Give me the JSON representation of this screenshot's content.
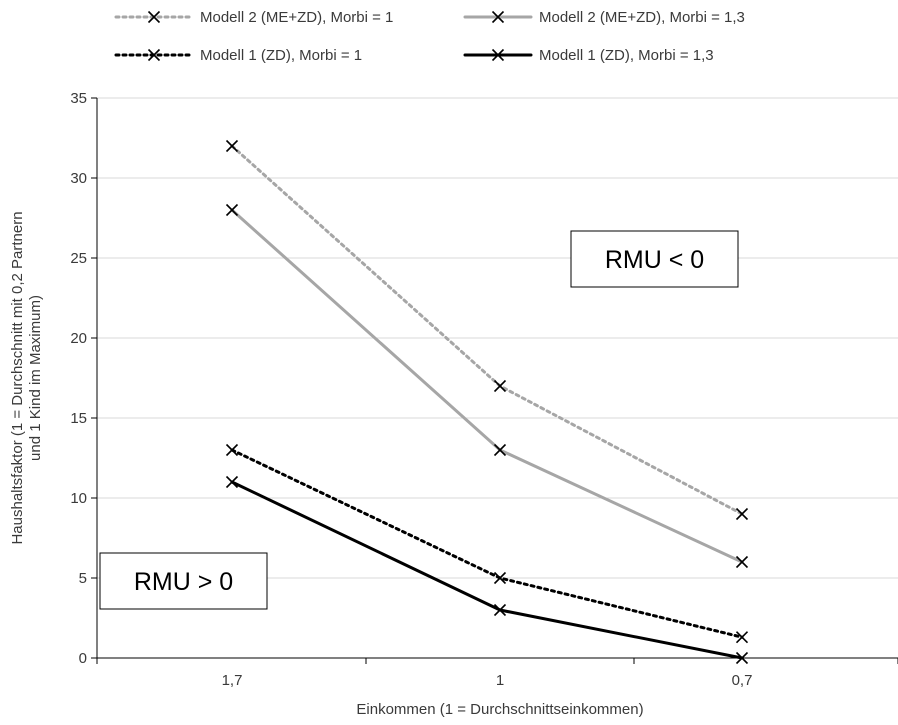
{
  "chart_data": {
    "type": "line",
    "categories": [
      "1,7",
      "1",
      "0,7"
    ],
    "xlabel": "Einkommen (1 = Durchschnittseinkommen)",
    "ylabel_lines": [
      "Haushaltsfaktor (1 = Durchschnitt mit 0,2 Partnern",
      "und 1 Kind im Maximum)"
    ],
    "ylim": [
      0,
      35
    ],
    "yticks": [
      0,
      5,
      10,
      15,
      20,
      25,
      30,
      35
    ],
    "grid": true,
    "legend_position": "top",
    "series": [
      {
        "name": "Modell 2 (ME+ZD), Morbi = 1",
        "values": [
          32,
          17,
          9
        ],
        "color": "#a6a6a6",
        "style": "dotted",
        "width": 3
      },
      {
        "name": "Modell 2 (ME+ZD), Morbi = 1,3",
        "values": [
          28,
          13,
          6
        ],
        "color": "#a6a6a6",
        "style": "solid",
        "width": 3
      },
      {
        "name": "Modell 1 (ZD), Morbi = 1",
        "values": [
          13,
          5,
          1.3
        ],
        "color": "#000000",
        "style": "dotted",
        "width": 3
      },
      {
        "name": "Modell 1 (ZD), Morbi = 1,3",
        "values": [
          11,
          3,
          0
        ],
        "color": "#000000",
        "style": "solid",
        "width": 3
      }
    ],
    "annotations": [
      {
        "id": "rmu-negative",
        "text": "RMU < 0"
      },
      {
        "id": "rmu-positive",
        "text": "RMU > 0"
      }
    ]
  }
}
